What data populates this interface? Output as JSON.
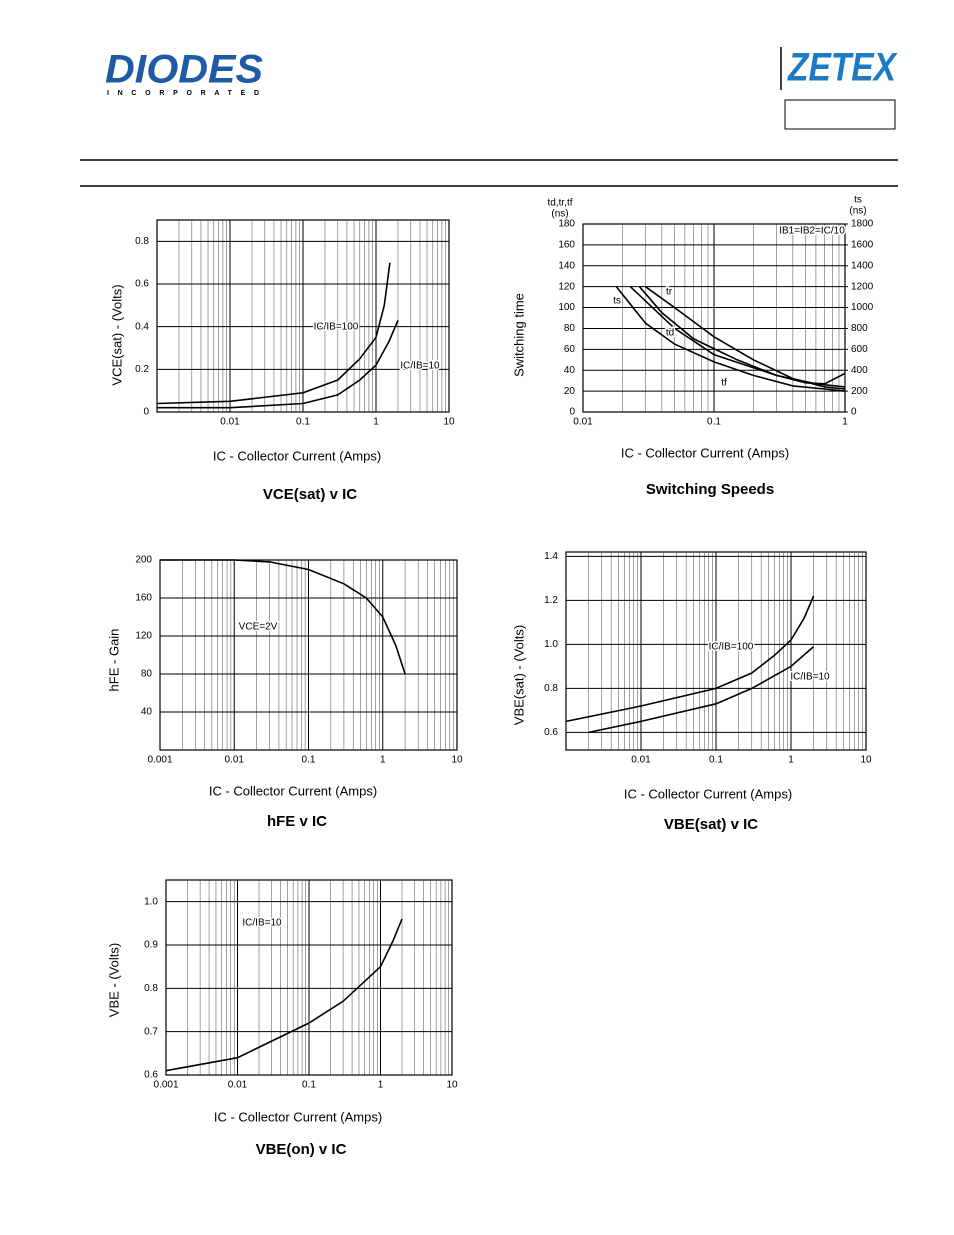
{
  "header": {
    "logo": "DIODES",
    "logo_sub": "INCORPORATED",
    "brand": "ZETEX"
  },
  "chart_data": [
    {
      "type": "line",
      "title": "VCE(sat) v IC",
      "x_label": "IC - Collector Current (Amps)",
      "y_label": "VCE(sat) - (Volts)",
      "x_scale": "log",
      "grid": true,
      "minor_grid": true,
      "xlim": [
        0.001,
        10
      ],
      "xticks": [
        0.01,
        0.1,
        1,
        10
      ],
      "ylim": [
        0,
        0.9
      ],
      "yticks": [
        0,
        0.2,
        0.4,
        0.6,
        0.8
      ],
      "series": [
        {
          "name": "IC/IB=100",
          "color": "#000000",
          "x": [
            0.001,
            0.01,
            0.1,
            0.3,
            0.6,
            1,
            1.3,
            1.55
          ],
          "values": [
            0.04,
            0.05,
            0.09,
            0.15,
            0.25,
            0.35,
            0.5,
            0.7
          ]
        },
        {
          "name": "IC/IB=10",
          "color": "#000000",
          "x": [
            0.001,
            0.01,
            0.1,
            0.3,
            0.6,
            1,
            1.5,
            2
          ],
          "values": [
            0.02,
            0.02,
            0.04,
            0.08,
            0.15,
            0.22,
            0.33,
            0.43
          ]
        }
      ]
    },
    {
      "type": "line",
      "title": "Switching Speeds",
      "x_label": "IC - Collector Current (Amps)",
      "y_label": "Switching time",
      "y_unit_label": [
        "td,tr,tf",
        "(ns)"
      ],
      "y2_label": [
        "ts",
        "(ns)"
      ],
      "annotation": "IB1=IB2=IC/10",
      "x_scale": "log",
      "grid": true,
      "minor_grid": true,
      "xlim": [
        0.01,
        1
      ],
      "xticks": [
        0.01,
        0.1,
        1
      ],
      "ylim": [
        0,
        180
      ],
      "yticks": [
        0,
        20,
        40,
        60,
        80,
        100,
        120,
        140,
        160,
        180
      ],
      "y2lim": [
        0,
        1800
      ],
      "y2ticks": [
        0,
        200,
        400,
        600,
        800,
        1000,
        1200,
        1400,
        1600,
        1800
      ],
      "series": [
        {
          "name": "ts",
          "color": "#000000",
          "axis": "y2",
          "x": [
            0.018,
            0.03,
            0.05,
            0.1,
            0.2,
            0.4,
            0.7,
            1
          ],
          "values": [
            1200,
            850,
            650,
            480,
            350,
            250,
            220,
            200
          ]
        },
        {
          "name": "td",
          "color": "#000000",
          "x": [
            0.023,
            0.05,
            0.1,
            0.3,
            0.6,
            1
          ],
          "values": [
            120,
            80,
            55,
            35,
            27,
            24
          ]
        },
        {
          "name": "tr",
          "color": "#000000",
          "x": [
            0.03,
            0.05,
            0.1,
            0.2,
            0.4,
            0.7,
            1
          ],
          "values": [
            120,
            100,
            72,
            50,
            32,
            24,
            22
          ]
        },
        {
          "name": "tf",
          "color": "#000000",
          "x": [
            0.027,
            0.04,
            0.07,
            0.15,
            0.3,
            0.5,
            0.7,
            1
          ],
          "values": [
            120,
            95,
            70,
            50,
            35,
            28,
            27,
            37
          ]
        }
      ]
    },
    {
      "type": "line",
      "title": "hFE v IC",
      "x_label": "IC - Collector Current (Amps)",
      "y_label": "hFE - Gain",
      "annotation": "VCE=2V",
      "x_scale": "log",
      "grid": true,
      "minor_grid": true,
      "xlim": [
        0.001,
        10
      ],
      "xticks": [
        0.001,
        0.01,
        0.1,
        1,
        10
      ],
      "ylim": [
        0,
        200
      ],
      "yticks": [
        40,
        80,
        120,
        160,
        200
      ],
      "series": [
        {
          "color": "#000000",
          "x": [
            0.001,
            0.01,
            0.03,
            0.1,
            0.3,
            0.6,
            1,
            1.5,
            2
          ],
          "values": [
            200,
            200,
            198,
            190,
            175,
            160,
            140,
            110,
            80
          ]
        }
      ]
    },
    {
      "type": "line",
      "title": "VBE(sat) v IC",
      "x_label": "IC - Collector Current (Amps)",
      "y_label": "VBE(sat) - (Volts)",
      "x_scale": "log",
      "grid": true,
      "minor_grid": true,
      "xlim": [
        0.001,
        10
      ],
      "xticks": [
        0.01,
        0.1,
        1,
        10
      ],
      "ylim": [
        0.52,
        1.42
      ],
      "yticks": [
        0.6,
        0.8,
        {
          "value": 1,
          "label": "1.0"
        },
        1.2,
        1.4
      ],
      "series": [
        {
          "name": "IC/IB=100",
          "color": "#000000",
          "x": [
            0.001,
            0.01,
            0.1,
            0.3,
            0.6,
            1,
            1.5,
            2
          ],
          "values": [
            0.65,
            0.72,
            0.8,
            0.87,
            0.95,
            1.02,
            1.12,
            1.22
          ]
        },
        {
          "name": "IC/IB=10",
          "color": "#000000",
          "x": [
            0.002,
            0.01,
            0.1,
            0.3,
            1,
            2
          ],
          "values": [
            0.6,
            0.65,
            0.73,
            0.8,
            0.9,
            0.99
          ]
        }
      ]
    },
    {
      "type": "line",
      "title": "VBE(on) v IC",
      "x_label": "IC - Collector Current (Amps)",
      "y_label": "VBE - (Volts)",
      "x_scale": "log",
      "grid": true,
      "minor_grid": true,
      "xlim": [
        0.001,
        10
      ],
      "xticks": [
        0.001,
        0.01,
        0.1,
        1,
        10
      ],
      "ylim": [
        0.6,
        1.05
      ],
      "yticks": [
        0.6,
        0.7,
        0.8,
        0.9,
        {
          "value": 1,
          "label": "1.0"
        }
      ],
      "series": [
        {
          "name": "IC/IB=10",
          "color": "#000000",
          "x": [
            0.001,
            0.01,
            0.1,
            0.3,
            1,
            1.5,
            2
          ],
          "values": [
            0.61,
            0.64,
            0.72,
            0.77,
            0.85,
            0.91,
            0.96
          ]
        }
      ]
    }
  ]
}
